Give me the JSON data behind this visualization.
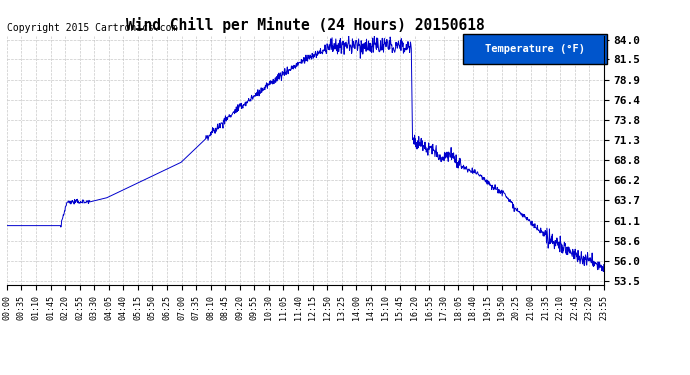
{
  "title": "Wind Chill per Minute (24 Hours) 20150618",
  "copyright": "Copyright 2015 Cartronics.com",
  "legend_label": "Temperature (°F)",
  "line_color": "#0000cc",
  "legend_bg": "#0055cc",
  "legend_text_color": "#ffffff",
  "background_color": "#ffffff",
  "grid_color": "#bbbbbb",
  "yticks": [
    53.5,
    56.0,
    58.6,
    61.1,
    63.7,
    66.2,
    68.8,
    71.3,
    73.8,
    76.4,
    78.9,
    81.5,
    84.0
  ],
  "ymin": 53.0,
  "ymax": 84.5,
  "xtick_labels": [
    "00:00",
    "00:35",
    "01:10",
    "01:45",
    "02:20",
    "02:55",
    "03:30",
    "04:05",
    "04:40",
    "05:15",
    "05:50",
    "06:25",
    "07:00",
    "07:35",
    "08:10",
    "08:45",
    "09:20",
    "09:55",
    "10:30",
    "11:05",
    "11:40",
    "12:15",
    "12:50",
    "13:25",
    "14:00",
    "14:35",
    "15:10",
    "15:45",
    "16:20",
    "16:55",
    "17:30",
    "18:05",
    "18:40",
    "19:15",
    "19:50",
    "20:25",
    "21:00",
    "21:35",
    "22:10",
    "22:45",
    "23:20",
    "23:55"
  ]
}
